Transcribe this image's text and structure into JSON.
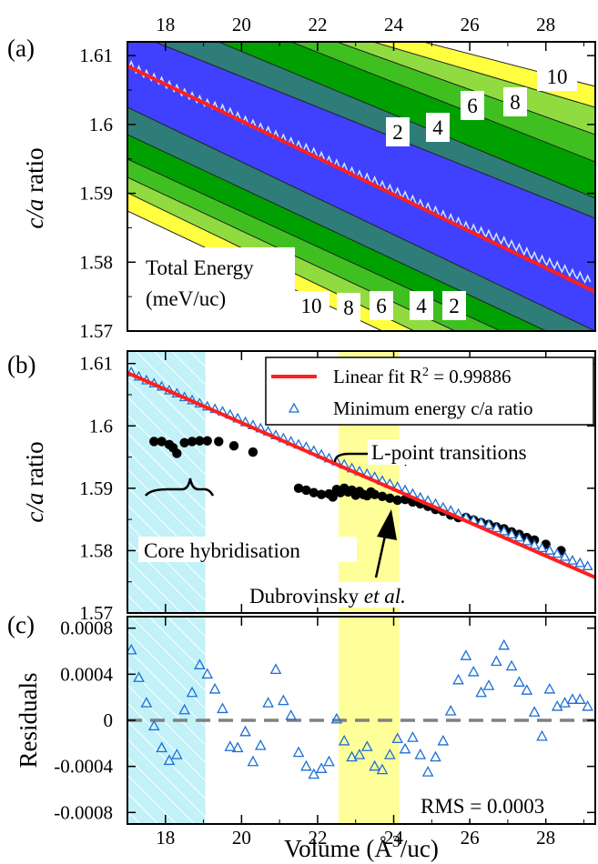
{
  "chart_data": [
    {
      "panel": "(a)",
      "type": "heatmap",
      "ylabel_italic": "c/a",
      "ylabel_rest": " ratio",
      "x_top_ticks": [
        "18",
        "20",
        "22",
        "24",
        "26",
        "28"
      ],
      "y_ticks": [
        "1.61",
        "1.6",
        "1.59",
        "1.58",
        "1.57"
      ],
      "xlim": [
        17.0,
        29.3
      ],
      "ylim": [
        1.57,
        1.612
      ],
      "colorbar_title": [
        "Total Energy",
        "(meV/uc)"
      ],
      "contour_labels_right": [
        "2",
        "4",
        "6",
        "8",
        "10"
      ],
      "contour_labels_bottom": [
        "10",
        "8",
        "6",
        "4",
        "2"
      ],
      "contour_colors": [
        "#4040ff",
        "#2e7d78",
        "#00a000",
        "#40c020",
        "#90dc40",
        "#ffff40",
        "#ffffff"
      ],
      "minimum_line": {
        "x": [
          17.0,
          29.3
        ],
        "y": [
          1.6085,
          1.5757
        ]
      }
    },
    {
      "panel": "(b)",
      "type": "scatter",
      "ylabel_italic": "c/a",
      "ylabel_rest": " ratio",
      "y_ticks": [
        "1.61",
        "1.6",
        "1.59",
        "1.58",
        "1.57"
      ],
      "xlim": [
        17.0,
        29.3
      ],
      "ylim": [
        1.57,
        1.612
      ],
      "legend": [
        "Linear fit R",
        "2",
        " = 0.99886",
        "Minimum energy c/a ratio"
      ],
      "annotations": {
        "l_point": "L-point transitions",
        "core": "Core hybridisation",
        "dubro_name": "Dubrovinsky ",
        "dubro_etal": "et al."
      },
      "fit_line": {
        "x": [
          17.0,
          29.3
        ],
        "y": [
          1.6085,
          1.5757
        ]
      },
      "minimum_energy": {
        "x": [
          17.1,
          17.3,
          17.5,
          17.7,
          17.9,
          18.1,
          18.3,
          18.5,
          18.7,
          18.9,
          19.1,
          19.3,
          19.5,
          19.7,
          19.9,
          20.1,
          20.3,
          20.5,
          20.7,
          20.9,
          21.1,
          21.3,
          21.5,
          21.7,
          21.9,
          22.1,
          22.3,
          22.5,
          22.7,
          22.9,
          23.1,
          23.3,
          23.5,
          23.7,
          23.9,
          24.1,
          24.3,
          24.5,
          24.7,
          24.9,
          25.1,
          25.3,
          25.5,
          25.7,
          25.9,
          26.1,
          26.3,
          26.5,
          26.7,
          26.9,
          27.1,
          27.3,
          27.5,
          27.7,
          27.9,
          28.1,
          28.3,
          28.5,
          28.7,
          28.9,
          29.1
        ],
        "y": [
          1.6086,
          1.6079,
          1.6073,
          1.6068,
          1.6063,
          1.6057,
          1.6052,
          1.6046,
          1.6041,
          1.6036,
          1.6031,
          1.6027,
          1.6023,
          1.6018,
          1.6012,
          1.6006,
          1.6001,
          1.5996,
          1.5991,
          1.5985,
          1.598,
          1.5975,
          1.597,
          1.5966,
          1.596,
          1.5954,
          1.5948,
          1.5943,
          1.5938,
          1.5932,
          1.5927,
          1.5923,
          1.5918,
          1.5912,
          1.5907,
          1.5902,
          1.5897,
          1.5891,
          1.5885,
          1.588,
          1.5875,
          1.5869,
          1.5864,
          1.5859,
          1.5853,
          1.5849,
          1.5845,
          1.5841,
          1.5836,
          1.5831,
          1.5826,
          1.5821,
          1.5815,
          1.5809,
          1.5804,
          1.58,
          1.5795,
          1.579,
          1.5784,
          1.578,
          1.5775
        ]
      },
      "dubrovinsky": {
        "x": [
          17.7,
          17.9,
          18.1,
          18.2,
          18.3,
          18.5,
          18.7,
          18.9,
          19.1,
          19.4,
          19.8,
          20.3,
          21.5,
          21.7,
          21.9,
          22.1,
          22.3,
          22.4,
          22.5,
          22.6,
          22.7,
          22.8,
          22.9,
          23.0,
          23.1,
          23.2,
          23.3,
          23.4,
          23.5,
          23.7,
          23.9,
          24.1,
          24.3,
          24.5,
          24.7,
          24.9,
          25.1,
          25.3,
          25.5,
          25.7,
          25.9,
          26.1,
          26.3,
          26.5,
          26.7,
          26.9,
          27.1,
          27.3,
          27.5,
          27.7,
          28.0,
          28.4
        ],
        "y": [
          1.5975,
          1.5975,
          1.597,
          1.5965,
          1.5956,
          1.5973,
          1.5975,
          1.5976,
          1.5976,
          1.5975,
          1.5968,
          1.5958,
          1.59,
          1.5897,
          1.5893,
          1.589,
          1.5891,
          1.5886,
          1.5898,
          1.5893,
          1.59,
          1.5894,
          1.5897,
          1.5889,
          1.5895,
          1.589,
          1.5888,
          1.5894,
          1.589,
          1.5887,
          1.5884,
          1.5881,
          1.5882,
          1.5878,
          1.5875,
          1.5871,
          1.5866,
          1.5863,
          1.5857,
          1.5853,
          1.5853,
          1.5849,
          1.5845,
          1.5842,
          1.5838,
          1.5835,
          1.583,
          1.5826,
          1.5821,
          1.5817,
          1.581,
          1.58
        ]
      },
      "shade_core": [
        17.0,
        19.05
      ],
      "shade_lpoint": [
        22.55,
        24.15
      ]
    },
    {
      "panel": "(c)",
      "type": "scatter",
      "ylabel": "Residuals",
      "xlabel_prefix": "Volume (Å",
      "xlabel_sup": "3",
      "xlabel_suffix": "/uc)",
      "x_ticks": [
        "18",
        "20",
        "22",
        "24",
        "26",
        "28"
      ],
      "y_ticks": [
        "0.0008",
        "0.0004",
        "0",
        "-0.0004",
        "-0.0008"
      ],
      "xlim": [
        17.0,
        29.3
      ],
      "ylim": [
        -0.0009,
        0.0009
      ],
      "rms_label": "RMS = 0.0003",
      "residuals": {
        "x": [
          17.1,
          17.3,
          17.5,
          17.7,
          17.9,
          18.1,
          18.3,
          18.5,
          18.7,
          18.9,
          19.1,
          19.3,
          19.5,
          19.7,
          19.9,
          20.1,
          20.3,
          20.5,
          20.7,
          20.9,
          21.1,
          21.3,
          21.5,
          21.7,
          21.9,
          22.1,
          22.3,
          22.5,
          22.7,
          22.9,
          23.1,
          23.3,
          23.5,
          23.7,
          23.9,
          24.1,
          24.3,
          24.5,
          24.7,
          24.9,
          25.1,
          25.3,
          25.5,
          25.7,
          25.9,
          26.1,
          26.3,
          26.5,
          26.7,
          26.9,
          27.1,
          27.3,
          27.5,
          27.7,
          27.9,
          28.1,
          28.3,
          28.5,
          28.7,
          28.9,
          29.1
        ],
        "y": [
          0.00061,
          0.00037,
          0.00015,
          -5e-05,
          -0.00024,
          -0.00035,
          -0.0003,
          9e-05,
          0.00024,
          0.00048,
          0.0004,
          0.00027,
          0.0001,
          -0.00023,
          -0.00024,
          -0.0001,
          -0.00036,
          -0.00022,
          0.00015,
          0.00044,
          0.00017,
          4e-05,
          -0.00028,
          -0.0004,
          -0.00047,
          -0.00042,
          -0.00036,
          1e-05,
          -0.00018,
          -0.00032,
          -0.0003,
          -0.00023,
          -0.0004,
          -0.00043,
          -0.0003,
          -0.00016,
          -0.00025,
          -0.00015,
          -0.0003,
          -0.00045,
          -0.00032,
          -0.00018,
          8e-05,
          0.00035,
          0.00056,
          0.00042,
          0.00024,
          0.0003,
          0.00051,
          0.00065,
          0.00047,
          0.00033,
          0.00026,
          7e-05,
          -0.00014,
          0.00027,
          0.00012,
          0.00015,
          0.00018,
          0.00018,
          0.00012
        ]
      }
    }
  ]
}
